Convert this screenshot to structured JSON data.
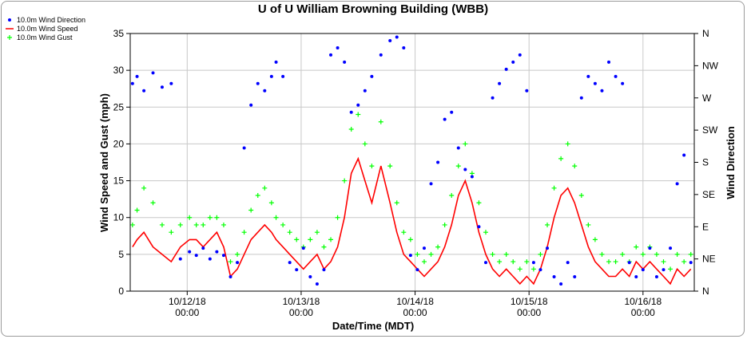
{
  "chart_data": {
    "type": "scatter",
    "title": "U of U William Browning Building (WBB)",
    "xlabel": "Date/Time (MDT)",
    "ylabel": "Wind Speed and Gust (mph)",
    "y2label": "Wind Direction",
    "ylim": [
      0,
      35
    ],
    "y_ticks": [
      "0",
      "5",
      "10",
      "15",
      "20",
      "25",
      "30",
      "35"
    ],
    "y2_ticks": [
      "N",
      "NE",
      "E",
      "SE",
      "S",
      "SW",
      "W",
      "NW",
      "N"
    ],
    "x_ticks": [
      {
        "date": "10/12/18",
        "time": "00:00",
        "day": 1
      },
      {
        "date": "10/13/18",
        "time": "00:00",
        "day": 2
      },
      {
        "date": "10/14/18",
        "time": "00:00",
        "day": 3
      },
      {
        "date": "10/15/18",
        "time": "00:00",
        "day": 4
      },
      {
        "date": "10/16/18",
        "time": "00:00",
        "day": 5
      }
    ],
    "xlim_days": [
      0.5,
      5.45
    ],
    "grid": true,
    "legend_position": "top-left",
    "series": [
      {
        "name": "10.0m Wind Direction",
        "marker": "dot",
        "color": "#0000ff",
        "axis": "right",
        "x": [
          0.52,
          0.56,
          0.62,
          0.7,
          0.78,
          0.86,
          0.94,
          1.02,
          1.08,
          1.14,
          1.2,
          1.26,
          1.32,
          1.38,
          1.44,
          1.5,
          1.56,
          1.62,
          1.68,
          1.74,
          1.78,
          1.84,
          1.9,
          1.96,
          2.02,
          2.08,
          2.14,
          2.2,
          2.26,
          2.32,
          2.38,
          2.44,
          2.5,
          2.56,
          2.62,
          2.7,
          2.78,
          2.84,
          2.9,
          2.96,
          3.02,
          3.08,
          3.14,
          3.2,
          3.26,
          3.32,
          3.38,
          3.44,
          3.5,
          3.56,
          3.62,
          3.68,
          3.74,
          3.8,
          3.86,
          3.92,
          3.98,
          4.04,
          4.1,
          4.16,
          4.22,
          4.28,
          4.34,
          4.4,
          4.46,
          4.52,
          4.58,
          4.64,
          4.7,
          4.76,
          4.82,
          4.88,
          4.94,
          5.0,
          5.06,
          5.12,
          5.18,
          5.24,
          5.3,
          5.36,
          5.42
        ],
        "y": [
          290,
          300,
          280,
          305,
          285,
          290,
          45,
          55,
          50,
          60,
          45,
          55,
          50,
          20,
          40,
          200,
          260,
          290,
          280,
          300,
          320,
          300,
          40,
          30,
          60,
          20,
          10,
          30,
          330,
          340,
          320,
          250,
          260,
          280,
          300,
          330,
          350,
          355,
          340,
          50,
          30,
          60,
          150,
          180,
          240,
          250,
          200,
          170,
          160,
          90,
          40,
          270,
          290,
          310,
          320,
          330,
          280,
          40,
          30,
          60,
          20,
          10,
          40,
          20,
          270,
          300,
          290,
          280,
          320,
          300,
          290,
          40,
          20,
          30,
          60,
          20,
          30,
          60,
          150,
          190,
          40
        ]
      },
      {
        "name": "10.0m Wind Speed",
        "marker": "line",
        "color": "#ff0000",
        "axis": "left",
        "x": [
          0.52,
          0.56,
          0.62,
          0.7,
          0.78,
          0.86,
          0.94,
          1.02,
          1.08,
          1.14,
          1.2,
          1.26,
          1.32,
          1.38,
          1.44,
          1.5,
          1.56,
          1.62,
          1.68,
          1.74,
          1.78,
          1.84,
          1.9,
          1.96,
          2.02,
          2.08,
          2.14,
          2.2,
          2.26,
          2.32,
          2.38,
          2.44,
          2.5,
          2.56,
          2.62,
          2.7,
          2.78,
          2.84,
          2.9,
          2.96,
          3.02,
          3.08,
          3.14,
          3.2,
          3.26,
          3.32,
          3.38,
          3.44,
          3.5,
          3.56,
          3.62,
          3.68,
          3.74,
          3.8,
          3.86,
          3.92,
          3.98,
          4.04,
          4.1,
          4.16,
          4.22,
          4.28,
          4.34,
          4.4,
          4.46,
          4.52,
          4.58,
          4.64,
          4.7,
          4.76,
          4.82,
          4.88,
          4.94,
          5.0,
          5.06,
          5.12,
          5.18,
          5.24,
          5.3,
          5.36,
          5.42
        ],
        "y": [
          6,
          7,
          8,
          6,
          5,
          4,
          6,
          7,
          7,
          6,
          7,
          8,
          6,
          2,
          3,
          5,
          7,
          8,
          9,
          8,
          7,
          6,
          5,
          4,
          3,
          4,
          5,
          3,
          4,
          6,
          10,
          16,
          18,
          15,
          12,
          17,
          12,
          8,
          5,
          4,
          3,
          2,
          3,
          4,
          6,
          9,
          13,
          15,
          12,
          8,
          5,
          3,
          2,
          3,
          2,
          1,
          2,
          1,
          3,
          6,
          10,
          13,
          14,
          12,
          9,
          6,
          4,
          3,
          2,
          2,
          3,
          2,
          4,
          3,
          4,
          3,
          2,
          1,
          3,
          2,
          3
        ]
      },
      {
        "name": "10.0m Wind Gust",
        "marker": "plus",
        "color": "#00ff00",
        "axis": "left",
        "x": [
          0.52,
          0.56,
          0.62,
          0.7,
          0.78,
          0.86,
          0.94,
          1.02,
          1.08,
          1.14,
          1.2,
          1.26,
          1.32,
          1.38,
          1.44,
          1.5,
          1.56,
          1.62,
          1.68,
          1.74,
          1.78,
          1.84,
          1.9,
          1.96,
          2.02,
          2.08,
          2.14,
          2.2,
          2.26,
          2.32,
          2.38,
          2.44,
          2.5,
          2.56,
          2.62,
          2.7,
          2.78,
          2.84,
          2.9,
          2.96,
          3.02,
          3.08,
          3.14,
          3.2,
          3.26,
          3.32,
          3.38,
          3.44,
          3.5,
          3.56,
          3.62,
          3.68,
          3.74,
          3.8,
          3.86,
          3.92,
          3.98,
          4.04,
          4.1,
          4.16,
          4.22,
          4.28,
          4.34,
          4.4,
          4.46,
          4.52,
          4.58,
          4.64,
          4.7,
          4.76,
          4.82,
          4.88,
          4.94,
          5.0,
          5.06,
          5.12,
          5.18,
          5.24,
          5.3,
          5.36,
          5.42
        ],
        "y": [
          9,
          11,
          14,
          12,
          9,
          8,
          9,
          10,
          9,
          9,
          10,
          10,
          9,
          4,
          5,
          8,
          11,
          13,
          14,
          12,
          10,
          9,
          8,
          7,
          6,
          7,
          8,
          6,
          7,
          10,
          15,
          22,
          24,
          20,
          17,
          23,
          17,
          12,
          8,
          7,
          5,
          4,
          5,
          6,
          9,
          13,
          17,
          20,
          16,
          12,
          8,
          5,
          4,
          5,
          4,
          3,
          4,
          3,
          5,
          9,
          14,
          18,
          20,
          17,
          13,
          9,
          7,
          5,
          4,
          4,
          5,
          4,
          6,
          5,
          6,
          5,
          4,
          3,
          5,
          4,
          5
        ]
      }
    ]
  }
}
